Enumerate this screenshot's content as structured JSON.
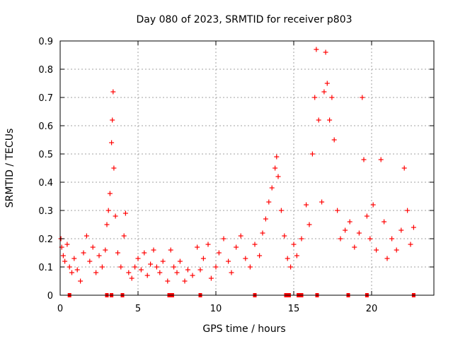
{
  "chart_data": {
    "type": "scatter",
    "title": "Day 080 of 2023, SRMTID for receiver p803",
    "xlabel": "GPS time / hours",
    "ylabel": "SRMTID / TECUs",
    "xlim": [
      0,
      24
    ],
    "ylim": [
      0,
      0.9
    ],
    "xticks": [
      0,
      5,
      10,
      15,
      20
    ],
    "xtick_labels": [
      "0",
      "5",
      "10",
      "15",
      "20"
    ],
    "yticks": [
      0,
      0.1,
      0.2,
      0.3,
      0.4,
      0.5,
      0.6,
      0.7,
      0.8,
      0.9
    ],
    "ytick_labels": [
      "0",
      "0.1",
      "0.2",
      "0.3",
      "0.4",
      "0.5",
      "0.6",
      "0.7",
      "0.8",
      "0.9"
    ],
    "grid": true,
    "marker": "+",
    "series_color": "#ff0000",
    "series": [
      {
        "name": "SRMTID",
        "points": [
          [
            0.05,
            0.2
          ],
          [
            0.1,
            0.17
          ],
          [
            0.2,
            0.14
          ],
          [
            0.3,
            0.12
          ],
          [
            0.45,
            0.18
          ],
          [
            0.6,
            0.1
          ],
          [
            0.75,
            0.08
          ],
          [
            0.9,
            0.13
          ],
          [
            1.1,
            0.09
          ],
          [
            1.3,
            0.05
          ],
          [
            1.5,
            0.15
          ],
          [
            1.7,
            0.21
          ],
          [
            1.9,
            0.12
          ],
          [
            2.1,
            0.17
          ],
          [
            2.3,
            0.08
          ],
          [
            2.5,
            0.14
          ],
          [
            2.7,
            0.1
          ],
          [
            2.9,
            0.16
          ],
          [
            3.0,
            0.25
          ],
          [
            3.1,
            0.3
          ],
          [
            3.2,
            0.36
          ],
          [
            3.3,
            0.54
          ],
          [
            3.35,
            0.62
          ],
          [
            3.4,
            0.72
          ],
          [
            3.45,
            0.45
          ],
          [
            3.55,
            0.28
          ],
          [
            3.7,
            0.15
          ],
          [
            3.9,
            0.1
          ],
          [
            4.1,
            0.21
          ],
          [
            4.2,
            0.29
          ],
          [
            4.4,
            0.08
          ],
          [
            4.6,
            0.06
          ],
          [
            4.8,
            0.1
          ],
          [
            5.0,
            0.13
          ],
          [
            5.2,
            0.09
          ],
          [
            5.4,
            0.15
          ],
          [
            5.6,
            0.07
          ],
          [
            5.8,
            0.11
          ],
          [
            6.0,
            0.16
          ],
          [
            6.2,
            0.1
          ],
          [
            6.4,
            0.08
          ],
          [
            6.6,
            0.12
          ],
          [
            6.9,
            0.05
          ],
          [
            7.1,
            0.16
          ],
          [
            7.3,
            0.1
          ],
          [
            7.5,
            0.08
          ],
          [
            7.7,
            0.12
          ],
          [
            8.0,
            0.05
          ],
          [
            8.2,
            0.09
          ],
          [
            8.5,
            0.07
          ],
          [
            8.8,
            0.17
          ],
          [
            9.0,
            0.09
          ],
          [
            9.2,
            0.13
          ],
          [
            9.5,
            0.18
          ],
          [
            9.7,
            0.06
          ],
          [
            10.0,
            0.1
          ],
          [
            10.2,
            0.15
          ],
          [
            10.5,
            0.2
          ],
          [
            10.8,
            0.12
          ],
          [
            11.0,
            0.08
          ],
          [
            11.3,
            0.17
          ],
          [
            11.6,
            0.21
          ],
          [
            11.9,
            0.13
          ],
          [
            12.2,
            0.1
          ],
          [
            12.5,
            0.18
          ],
          [
            12.8,
            0.14
          ],
          [
            13.0,
            0.22
          ],
          [
            13.2,
            0.27
          ],
          [
            13.4,
            0.33
          ],
          [
            13.6,
            0.38
          ],
          [
            13.8,
            0.45
          ],
          [
            13.9,
            0.49
          ],
          [
            14.0,
            0.42
          ],
          [
            14.2,
            0.3
          ],
          [
            14.4,
            0.21
          ],
          [
            14.6,
            0.13
          ],
          [
            14.8,
            0.1
          ],
          [
            15.0,
            0.18
          ],
          [
            15.2,
            0.14
          ],
          [
            15.5,
            0.2
          ],
          [
            15.8,
            0.32
          ],
          [
            16.0,
            0.25
          ],
          [
            16.2,
            0.5
          ],
          [
            16.35,
            0.7
          ],
          [
            16.45,
            0.87
          ],
          [
            16.6,
            0.62
          ],
          [
            16.8,
            0.33
          ],
          [
            16.95,
            0.72
          ],
          [
            17.05,
            0.86
          ],
          [
            17.15,
            0.75
          ],
          [
            17.3,
            0.62
          ],
          [
            17.45,
            0.7
          ],
          [
            17.6,
            0.55
          ],
          [
            17.8,
            0.3
          ],
          [
            18.0,
            0.2
          ],
          [
            18.3,
            0.23
          ],
          [
            18.6,
            0.26
          ],
          [
            18.9,
            0.17
          ],
          [
            19.2,
            0.22
          ],
          [
            19.4,
            0.7
          ],
          [
            19.5,
            0.48
          ],
          [
            19.7,
            0.28
          ],
          [
            19.9,
            0.2
          ],
          [
            20.1,
            0.32
          ],
          [
            20.3,
            0.16
          ],
          [
            20.6,
            0.48
          ],
          [
            20.8,
            0.26
          ],
          [
            21.0,
            0.13
          ],
          [
            21.3,
            0.2
          ],
          [
            21.6,
            0.16
          ],
          [
            21.9,
            0.23
          ],
          [
            22.1,
            0.45
          ],
          [
            22.3,
            0.3
          ],
          [
            22.5,
            0.18
          ],
          [
            22.7,
            0.24
          ]
        ]
      }
    ],
    "baseline_marks_x": [
      0.6,
      3.0,
      3.3,
      4.0,
      7.0,
      7.2,
      9.0,
      12.5,
      14.5,
      14.7,
      15.3,
      15.5,
      16.5,
      18.5,
      19.7,
      22.7
    ]
  }
}
